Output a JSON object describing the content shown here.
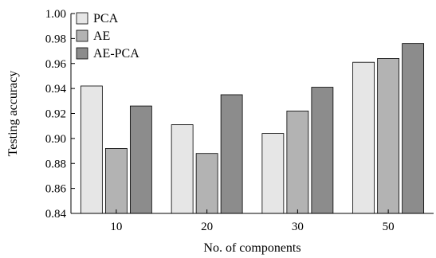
{
  "chart_data": {
    "type": "bar",
    "categories": [
      "10",
      "20",
      "30",
      "50"
    ],
    "series": [
      {
        "name": "PCA",
        "values": [
          0.942,
          0.911,
          0.904,
          0.961
        ],
        "color": "#e6e6e6"
      },
      {
        "name": "AE",
        "values": [
          0.892,
          0.888,
          0.922,
          0.964
        ],
        "color": "#b3b3b3"
      },
      {
        "name": "AE-PCA",
        "values": [
          0.926,
          0.935,
          0.941,
          0.976
        ],
        "color": "#8c8c8c"
      }
    ],
    "xlabel": "No. of components",
    "ylabel": "Testing accuracy",
    "ylim": [
      0.84,
      1.0
    ],
    "yticks": [
      "0.84",
      "0.86",
      "0.88",
      "0.90",
      "0.92",
      "0.94",
      "0.96",
      "0.98",
      "1.00"
    ],
    "grid": false,
    "legend_position": "top-left"
  }
}
